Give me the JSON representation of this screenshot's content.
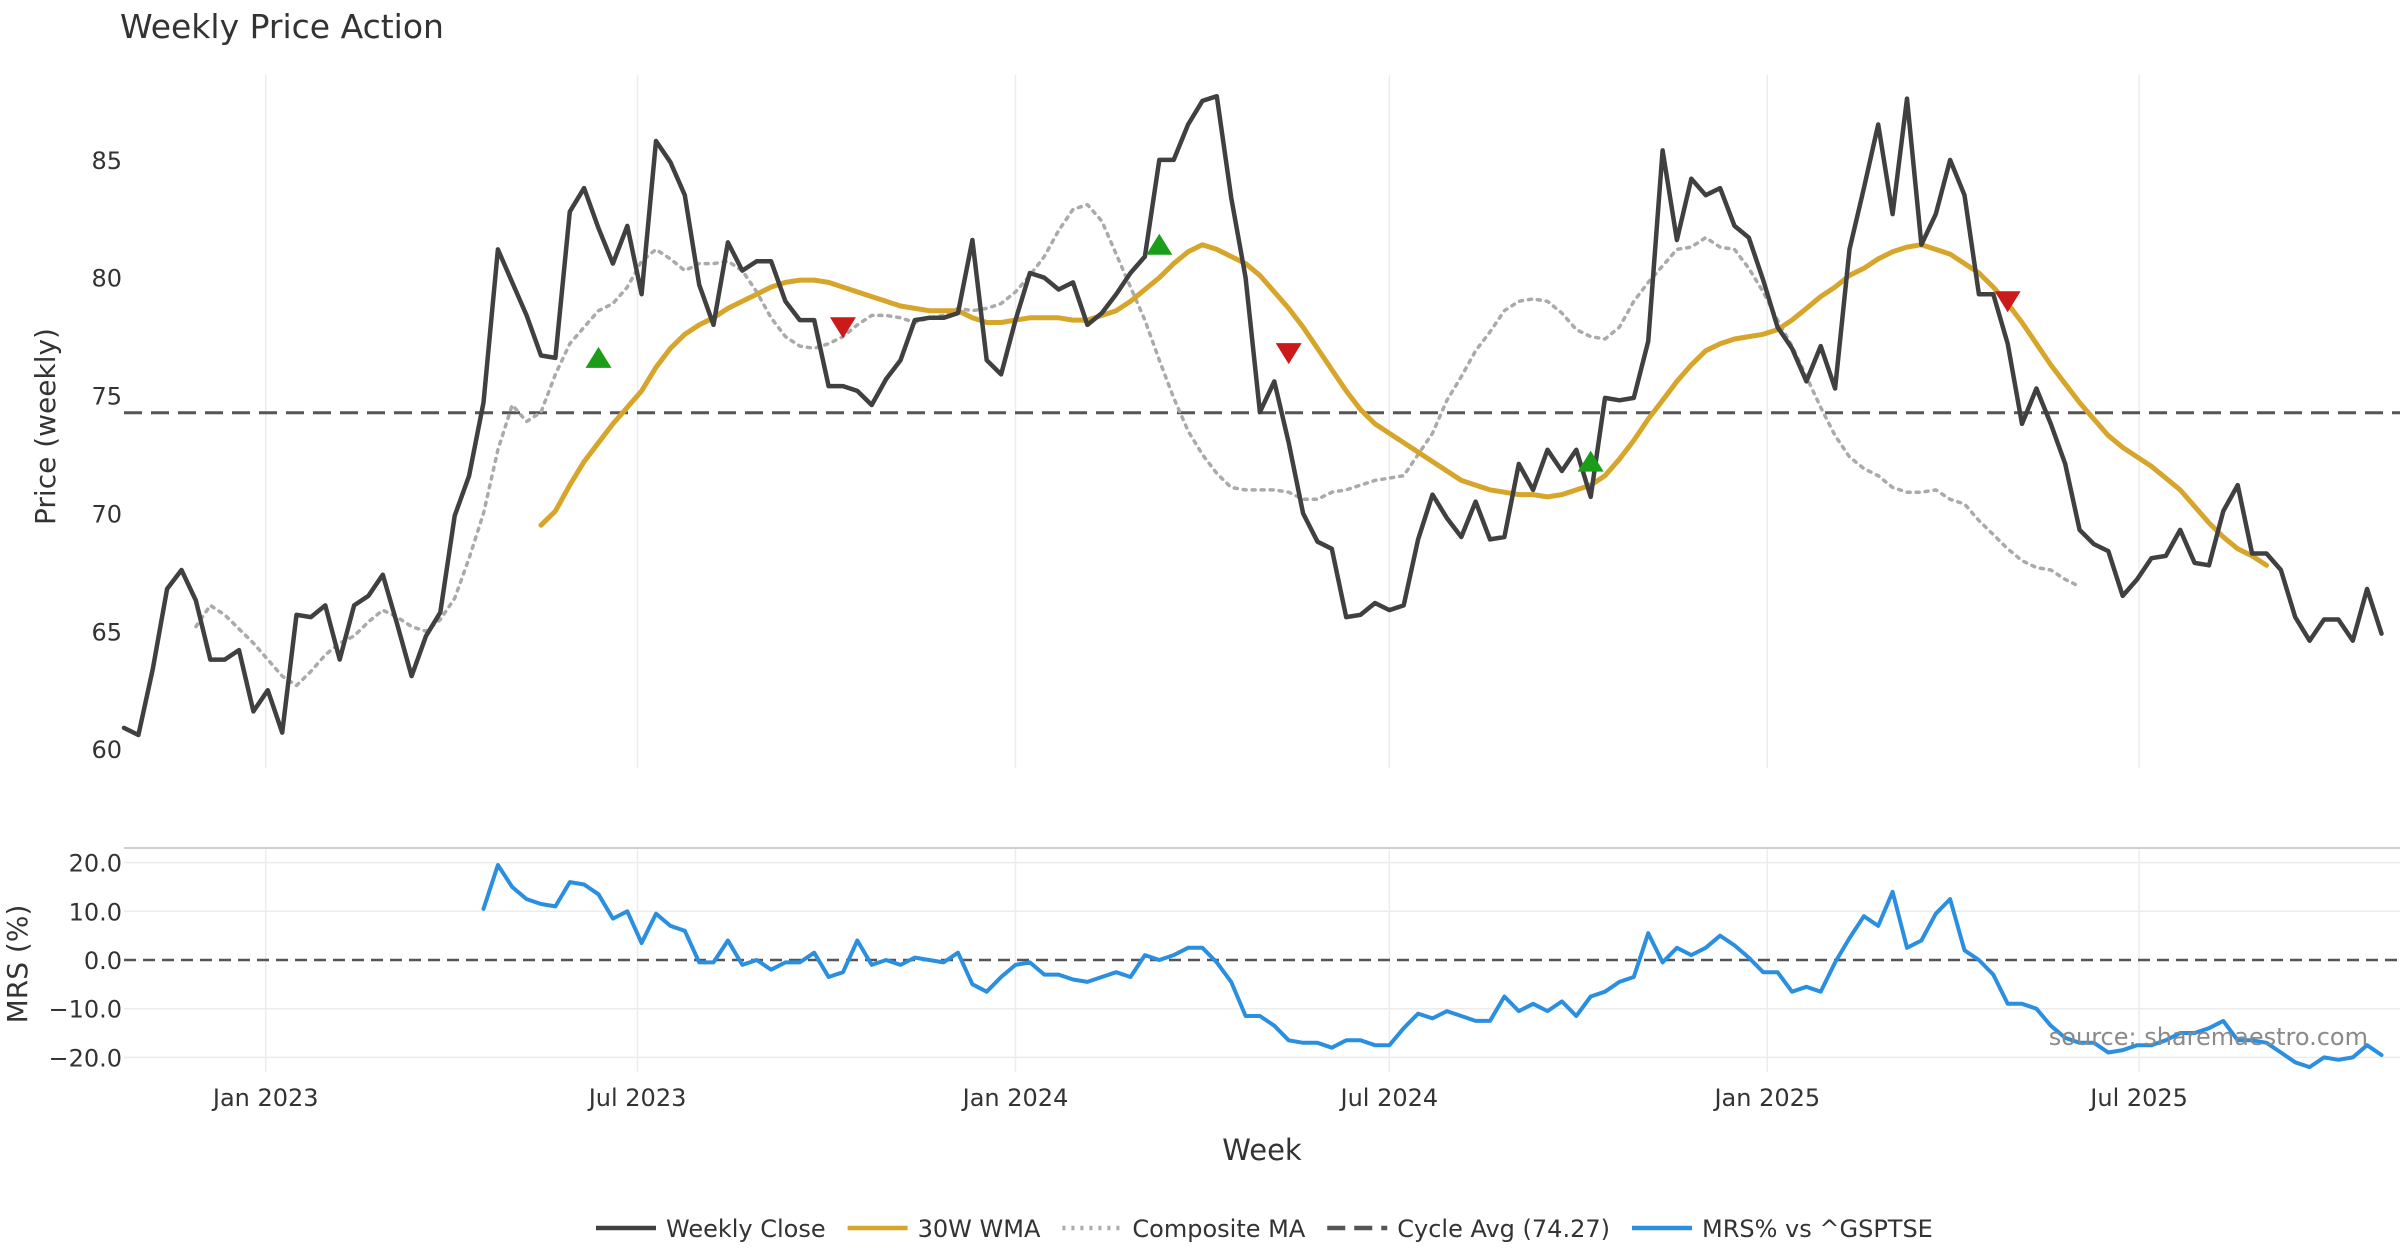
{
  "chart_data": [
    {
      "type": "line",
      "title": "Weekly Price Action",
      "ylabel": "Price (weekly)",
      "ylim": [
        59.2,
        88.6
      ],
      "yticks": [
        "60",
        "65",
        "70",
        "75",
        "80",
        "85"
      ],
      "cycle_avg": 74.27,
      "week_start": "2022-10-24",
      "series": [
        {
          "name": "Weekly Close",
          "color": "#404040",
          "start": 0,
          "values": [
            60.9,
            60.6,
            63.4,
            66.8,
            67.6,
            66.3,
            63.8,
            63.8,
            64.2,
            61.6,
            62.5,
            60.7,
            65.7,
            65.6,
            66.1,
            63.8,
            66.1,
            66.5,
            67.4,
            65.3,
            63.1,
            64.8,
            65.8,
            69.9,
            71.6,
            74.7,
            81.2,
            79.8,
            78.4,
            76.7,
            76.6,
            82.8,
            83.8,
            82.1,
            80.6,
            82.2,
            79.3,
            85.8,
            84.9,
            83.5,
            79.7,
            78.0,
            81.5,
            80.3,
            80.7,
            80.7,
            79.0,
            78.2,
            78.2,
            75.4,
            75.4,
            75.2,
            74.6,
            75.7,
            76.5,
            78.2,
            78.3,
            78.3,
            78.5,
            81.6,
            76.5,
            75.9,
            78.2,
            80.2,
            80.0,
            79.5,
            79.8,
            78.0,
            78.5,
            79.3,
            80.2,
            80.9,
            85.0,
            85.0,
            86.5,
            87.5,
            87.7,
            83.4,
            80.0,
            74.3,
            75.6,
            73.0,
            70.0,
            68.8,
            68.5,
            65.6,
            65.7,
            66.2,
            65.9,
            66.1,
            68.9,
            70.8,
            69.8,
            69.0,
            70.5,
            68.9,
            69.0,
            72.1,
            71.0,
            72.7,
            71.8,
            72.7,
            70.7,
            74.9,
            74.8,
            74.9,
            77.3,
            85.4,
            81.6,
            84.2,
            83.5,
            83.8,
            82.2,
            81.7,
            79.9,
            77.9,
            77.0,
            75.6,
            77.1,
            75.3,
            81.2,
            83.8,
            86.5,
            82.7,
            87.6,
            81.4,
            82.7,
            85.0,
            83.5,
            79.3,
            79.3,
            77.2,
            73.8,
            75.3,
            73.8,
            72.1,
            69.3,
            68.7,
            68.4,
            66.5,
            67.2,
            68.1,
            68.2,
            69.3,
            67.9,
            67.8,
            70.1,
            71.2,
            68.3,
            68.3,
            67.6,
            65.6,
            64.6,
            65.5,
            65.5,
            64.6,
            66.8,
            64.9
          ]
        },
        {
          "name": "30W WMA",
          "color": "#d6a52a",
          "start": 29,
          "values": [
            69.5,
            70.1,
            71.2,
            72.2,
            73.0,
            73.8,
            74.5,
            75.2,
            76.2,
            77.0,
            77.6,
            78.0,
            78.3,
            78.7,
            79.0,
            79.3,
            79.6,
            79.8,
            79.9,
            79.9,
            79.8,
            79.6,
            79.4,
            79.2,
            79.0,
            78.8,
            78.7,
            78.6,
            78.6,
            78.6,
            78.3,
            78.1,
            78.1,
            78.2,
            78.3,
            78.3,
            78.3,
            78.2,
            78.2,
            78.4,
            78.6,
            79.0,
            79.5,
            80.0,
            80.6,
            81.1,
            81.4,
            81.2,
            80.9,
            80.6,
            80.1,
            79.4,
            78.7,
            77.9,
            77.0,
            76.1,
            75.2,
            74.4,
            73.8,
            73.4,
            73.0,
            72.6,
            72.2,
            71.8,
            71.4,
            71.2,
            71.0,
            70.9,
            70.8,
            70.8,
            70.7,
            70.8,
            71.0,
            71.2,
            71.6,
            72.3,
            73.1,
            74.0,
            74.8,
            75.6,
            76.3,
            76.9,
            77.2,
            77.4,
            77.5,
            77.6,
            77.8,
            78.2,
            78.7,
            79.2,
            79.6,
            80.1,
            80.4,
            80.8,
            81.1,
            81.3,
            81.4,
            81.2,
            81.0,
            80.6,
            80.2,
            79.6,
            78.9,
            78.1,
            77.2,
            76.3,
            75.5,
            74.7,
            74.0,
            73.3,
            72.8,
            72.4,
            72.0,
            71.5,
            71.0,
            70.3,
            69.6,
            69.0,
            68.5,
            68.2,
            67.8
          ]
        },
        {
          "name": "Composite MA",
          "color": "#aaaaaa",
          "start": 5,
          "values": [
            65.2,
            66.1,
            65.7,
            65.1,
            64.5,
            63.8,
            63.1,
            62.7,
            63.3,
            64.0,
            64.5,
            64.8,
            65.4,
            65.9,
            65.6,
            65.2,
            65.0,
            65.5,
            66.4,
            68.1,
            70.0,
            72.7,
            74.6,
            73.9,
            74.3,
            75.9,
            77.2,
            77.9,
            78.6,
            78.9,
            79.6,
            80.7,
            81.2,
            80.8,
            80.3,
            80.6,
            80.6,
            80.7,
            80.3,
            79.4,
            78.3,
            77.5,
            77.1,
            77.0,
            77.2,
            77.5,
            78.0,
            78.4,
            78.4,
            78.3,
            78.1,
            78.3,
            78.4,
            78.7,
            78.6,
            78.7,
            78.9,
            79.4,
            80.1,
            80.9,
            82.0,
            82.9,
            83.1,
            82.4,
            81.0,
            79.6,
            78.2,
            76.5,
            74.9,
            73.5,
            72.5,
            71.7,
            71.1,
            71.0,
            71.0,
            71.0,
            70.9,
            70.6,
            70.6,
            70.9,
            71.0,
            71.2,
            71.4,
            71.5,
            71.6,
            72.5,
            73.4,
            74.8,
            75.8,
            76.9,
            77.7,
            78.6,
            79.0,
            79.1,
            79.0,
            78.5,
            77.8,
            77.5,
            77.4,
            77.9,
            79.0,
            79.8,
            80.5,
            81.2,
            81.3,
            81.7,
            81.3,
            81.2,
            80.4,
            79.4,
            78.2,
            77.1,
            75.8,
            74.5,
            73.3,
            72.4,
            71.9,
            71.6,
            71.1,
            70.9,
            70.9,
            71.0,
            70.6,
            70.4,
            69.7,
            69.1,
            68.5,
            68.0,
            67.7,
            67.6,
            67.2,
            66.9
          ]
        }
      ],
      "signals": [
        {
          "type": "buy",
          "index": 33,
          "value": 76.6
        },
        {
          "type": "sell",
          "index": 50,
          "value": 77.9
        },
        {
          "type": "buy",
          "index": 72,
          "value": 81.4
        },
        {
          "type": "sell",
          "index": 81,
          "value": 76.8
        },
        {
          "type": "buy",
          "index": 102,
          "value": 72.2
        },
        {
          "type": "sell",
          "index": 131,
          "value": 79.0
        }
      ]
    },
    {
      "type": "line",
      "xlabel": "Week",
      "ylabel": "MRS (%)",
      "ylim": [
        -23,
        23
      ],
      "yticks": [
        "20.0",
        "10.0",
        "0.0",
        "−10.0",
        "−20.0"
      ],
      "xticks": [
        {
          "label": "Jan 2023",
          "date": "2023-01-01"
        },
        {
          "label": "Jul 2023",
          "date": "2023-07-01"
        },
        {
          "label": "Jan 2024",
          "date": "2024-01-01"
        },
        {
          "label": "Jul 2024",
          "date": "2024-07-01"
        },
        {
          "label": "Jan 2025",
          "date": "2025-01-01"
        },
        {
          "label": "Jul 2025",
          "date": "2025-07-01"
        }
      ],
      "zero_line": 0,
      "series": [
        {
          "name": "MRS% vs ^GSPTSE",
          "color": "#2a8fe0",
          "start": 25,
          "values": [
            10.5,
            19.5,
            15.0,
            12.5,
            11.5,
            11.0,
            16.0,
            15.5,
            13.5,
            8.5,
            10.0,
            3.5,
            9.5,
            7.0,
            6.0,
            -0.5,
            -0.5,
            4.0,
            -1.0,
            0.0,
            -2.0,
            -0.5,
            -0.5,
            1.5,
            -3.5,
            -2.5,
            4.0,
            -1.0,
            0.0,
            -1.0,
            0.5,
            0.0,
            -0.5,
            1.5,
            -5.0,
            -6.5,
            -3.5,
            -1.0,
            -0.5,
            -3.0,
            -3.0,
            -4.0,
            -4.5,
            -3.5,
            -2.5,
            -3.5,
            1.0,
            0.0,
            1.0,
            2.5,
            2.5,
            -0.5,
            -4.5,
            -11.5,
            -11.5,
            -13.5,
            -16.5,
            -17.0,
            -17.0,
            -18.0,
            -16.5,
            -16.5,
            -17.5,
            -17.5,
            -14.0,
            -11.0,
            -12.0,
            -10.5,
            -11.5,
            -12.5,
            -12.5,
            -7.5,
            -10.5,
            -9.0,
            -10.5,
            -8.5,
            -11.5,
            -7.5,
            -6.5,
            -4.5,
            -3.5,
            5.5,
            -0.5,
            2.5,
            1.0,
            2.5,
            5.0,
            3.0,
            0.5,
            -2.5,
            -2.5,
            -6.5,
            -5.5,
            -6.5,
            -0.5,
            4.5,
            9.0,
            7.0,
            14.0,
            2.5,
            4.0,
            9.5,
            12.5,
            2.0,
            0.0,
            -3.0,
            -9.0,
            -9.0,
            -10.0,
            -13.5,
            -16.0,
            -17.0,
            -17.0,
            -19.0,
            -18.5,
            -17.5,
            -17.5,
            -16.5,
            -15.0,
            -15.0,
            -14.0,
            -12.5,
            -16.5,
            -16.5,
            -17.0,
            -19.0,
            -21.0,
            -22.0,
            -20.0,
            -20.5,
            -20.0,
            -17.5,
            -19.5
          ]
        }
      ],
      "source": "source: sharemaestro.com"
    }
  ],
  "legend": [
    {
      "label": "Weekly Close",
      "style": "solid",
      "color": "#404040"
    },
    {
      "label": "30W WMA",
      "style": "solid",
      "color": "#d6a52a"
    },
    {
      "label": "Composite MA",
      "style": "dotted",
      "color": "#aaaaaa"
    },
    {
      "label": "Cycle Avg (74.27)",
      "style": "dashed",
      "color": "#555555"
    },
    {
      "label": "MRS% vs ^GSPTSE",
      "style": "solid",
      "color": "#2a8fe0"
    }
  ]
}
